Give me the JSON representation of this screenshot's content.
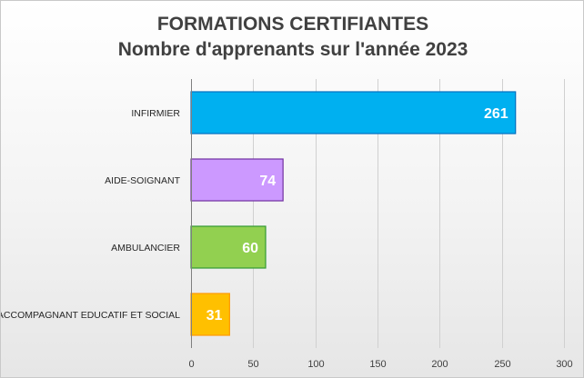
{
  "chart_data": {
    "type": "bar",
    "orientation": "horizontal",
    "title": [
      "FORMATIONS CERTIFIANTES",
      "Nombre d'apprenants sur l'année 2023"
    ],
    "categories": [
      "INFIRMIER",
      "AIDE-SOIGNANT",
      "AMBULANCIER",
      "ACCOMPAGNANT EDUCATIF ET SOCIAL"
    ],
    "values": [
      261,
      74,
      60,
      31
    ],
    "colors": [
      "#00b0f0",
      "#cc99ff",
      "#92d050",
      "#ffc000"
    ],
    "border_colors": [
      "#0070c0",
      "#7030a0",
      "#339933",
      "#ff9900"
    ],
    "xlim": [
      0,
      300
    ],
    "xticks": [
      0,
      50,
      100,
      150,
      200,
      250,
      300
    ],
    "grid": true,
    "legend": "none",
    "xlabel": "",
    "ylabel": ""
  }
}
